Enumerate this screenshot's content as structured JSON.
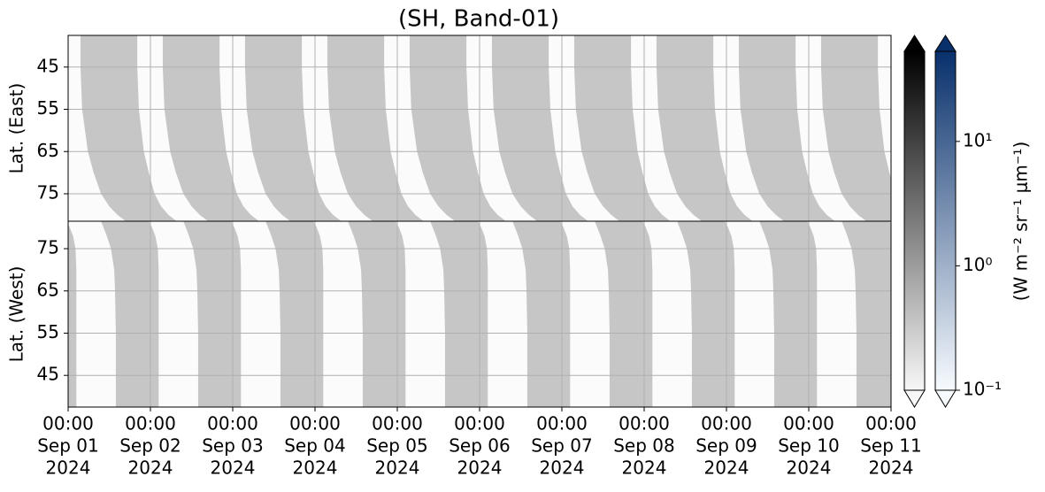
{
  "chart_data": {
    "type": "swath",
    "title": "(SH, Band-01)",
    "xlim": [
      "2024-09-01T00:00",
      "2024-09-11T00:00"
    ],
    "xticks": [
      {
        "value": "2024-09-01T00:00",
        "label": [
          "00:00",
          "Sep 01",
          "2024"
        ]
      },
      {
        "value": "2024-09-02T00:00",
        "label": [
          "00:00",
          "Sep 02",
          "2024"
        ]
      },
      {
        "value": "2024-09-03T00:00",
        "label": [
          "00:00",
          "Sep 03",
          "2024"
        ]
      },
      {
        "value": "2024-09-04T00:00",
        "label": [
          "00:00",
          "Sep 04",
          "2024"
        ]
      },
      {
        "value": "2024-09-05T00:00",
        "label": [
          "00:00",
          "Sep 05",
          "2024"
        ]
      },
      {
        "value": "2024-09-06T00:00",
        "label": [
          "00:00",
          "Sep 06",
          "2024"
        ]
      },
      {
        "value": "2024-09-07T00:00",
        "label": [
          "00:00",
          "Sep 07",
          "2024"
        ]
      },
      {
        "value": "2024-09-08T00:00",
        "label": [
          "00:00",
          "Sep 08",
          "2024"
        ]
      },
      {
        "value": "2024-09-09T00:00",
        "label": [
          "00:00",
          "Sep 09",
          "2024"
        ]
      },
      {
        "value": "2024-09-10T00:00",
        "label": [
          "00:00",
          "Sep 10",
          "2024"
        ]
      },
      {
        "value": "2024-09-11T00:00",
        "label": [
          "00:00",
          "Sep 11",
          "2024"
        ]
      }
    ],
    "grid": true,
    "panels": [
      {
        "ylabel": "Lat. (East)",
        "ylim": [
          81.5,
          37.5
        ],
        "yticks": [
          45,
          55,
          65,
          75
        ],
        "swath_color": "#c6c6c6",
        "swath_start_days": [
          0,
          1,
          2,
          3,
          4,
          5,
          6,
          7,
          8,
          9
        ],
        "profile": {
          "lat": [
            37.5,
            45,
            55,
            65,
            70,
            75,
            78,
            80,
            81.5
          ],
          "start": [
            0.15,
            0.15,
            0.17,
            0.24,
            0.31,
            0.4,
            0.5,
            0.6,
            0.7
          ],
          "end": [
            0.84,
            0.84,
            0.86,
            0.92,
            0.98,
            1.05,
            1.13,
            1.22,
            1.32
          ]
        }
      },
      {
        "ylabel": "Lat. (West)",
        "ylim": [
          37.5,
          81.5
        ],
        "yticks": [
          45,
          55,
          65,
          75
        ],
        "swath_color": "#c6c6c6",
        "swath_start_days": [
          -1,
          0,
          1,
          2,
          3,
          4,
          5,
          6,
          7,
          8,
          9
        ],
        "profile": {
          "lat": [
            81.5,
            80,
            78,
            75,
            70,
            65,
            55,
            45,
            37.5
          ],
          "start": [
            0.4,
            0.43,
            0.47,
            0.52,
            0.56,
            0.57,
            0.58,
            0.58,
            0.58
          ],
          "end": [
            0.98,
            1.02,
            1.06,
            1.09,
            1.1,
            1.1,
            1.1,
            1.1,
            1.1
          ]
        }
      }
    ],
    "colorbars": [
      {
        "colors": [
          "#f7f7f7",
          "#000000"
        ]
      },
      {
        "colors": [
          "#f7fbff",
          "#08306b"
        ]
      }
    ],
    "colorbar_scale": "log",
    "colorbar_lim": [
      0.1,
      53
    ],
    "colorbar_ticks": [
      {
        "value": 0.1,
        "label": "10⁻¹"
      },
      {
        "value": 1,
        "label": "10⁰"
      },
      {
        "value": 10,
        "label": "10¹"
      }
    ],
    "colorbar_label": "(W m⁻² sr⁻¹ μm⁻¹)"
  }
}
